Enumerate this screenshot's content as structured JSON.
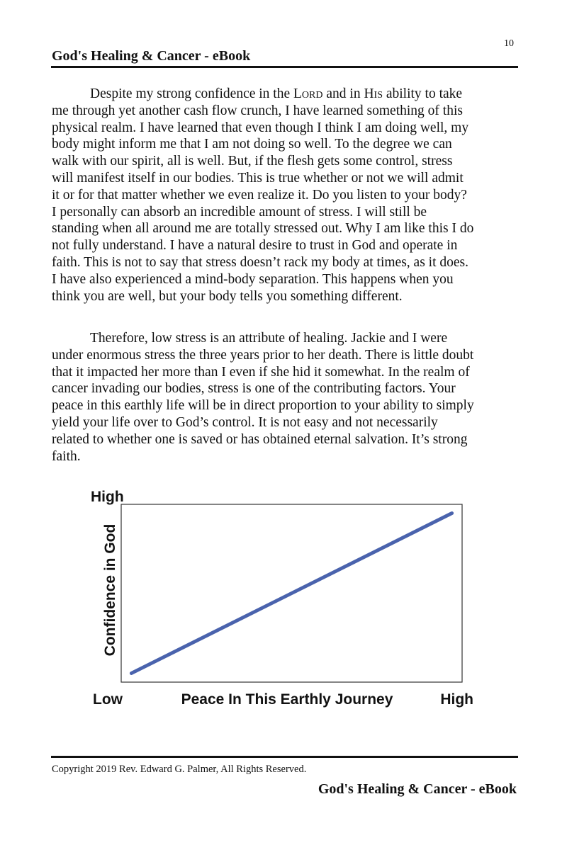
{
  "header": {
    "title": "God's Healing & Cancer - eBook",
    "page_number": "10"
  },
  "paragraph1": {
    "line1": {
      "a": "Despite my strong confidence in the ",
      "b": "Lord",
      "c": " and in ",
      "d": "His",
      "e": " ability to take"
    },
    "lines": [
      "me through yet another cash flow crunch, I have learned something of this",
      "physical realm.  I have learned that even though I think I am doing well, my",
      "body might inform me that I am not doing so well.  To the degree we can",
      "walk with our spirit, all is well.  But, if the flesh gets some control, stress",
      "will manifest itself in our bodies.  This is true whether or not we will admit",
      "it or for that matter whether we even realize it.  Do you listen to your body?",
      "I personally can absorb an incredible amount of stress.  I will still be",
      "standing when all around me are totally stressed out.  Why I am like this I do",
      "not fully understand.  I have a natural desire to trust in God and operate in",
      "faith.  This is not to say that stress doesn’t rack my body at times, as it does.",
      "I have also experienced a mind-body separation.  This happens when you",
      "think you are well, but your body tells you something different."
    ]
  },
  "paragraph2": {
    "lines": [
      "Therefore, low stress is an attribute of healing.  Jackie and I were",
      "under enormous stress the three years prior to her death.  There is little doubt",
      "that it impacted her more than I even if she hid it somewhat.  In the realm of",
      "cancer invading our bodies, stress is one of the contributing factors.  Your",
      "peace in this earthly life will be in direct proportion to your ability to simply",
      "yield your life over to God’s control.  It is not easy and not necessarily",
      "related to whether one is saved or has obtained eternal salvation.  It’s strong",
      "faith."
    ]
  },
  "chart_data": {
    "type": "line",
    "title": "",
    "xlabel": "Peace In This Earthly Journey",
    "ylabel": "Confidence in God",
    "x_tick_labels": {
      "low": "Low",
      "high": "High"
    },
    "y_tick_labels": {
      "high": "High"
    },
    "xlim": [
      0,
      1
    ],
    "ylim": [
      0,
      1
    ],
    "grid": false,
    "series": [
      {
        "x": [
          0.03,
          0.97
        ],
        "y": [
          0.05,
          0.95
        ]
      }
    ],
    "line_color": "#4a63ad"
  },
  "footer": {
    "copyright": "Copyright 2019 Rev. Edward G. Palmer, All Rights Reserved.",
    "title": "God's Healing & Cancer - eBook"
  }
}
